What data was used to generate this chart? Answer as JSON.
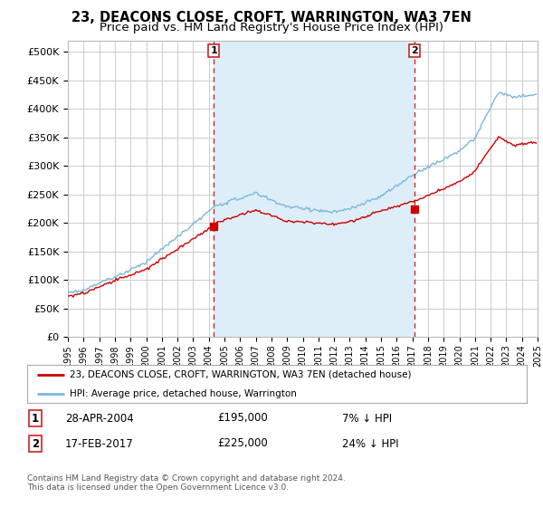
{
  "title": "23, DEACONS CLOSE, CROFT, WARRINGTON, WA3 7EN",
  "subtitle": "Price paid vs. HM Land Registry's House Price Index (HPI)",
  "ylim": [
    0,
    520000
  ],
  "yticks": [
    0,
    50000,
    100000,
    150000,
    200000,
    250000,
    300000,
    350000,
    400000,
    450000,
    500000
  ],
  "ytick_labels": [
    "£0",
    "£50K",
    "£100K",
    "£150K",
    "£200K",
    "£250K",
    "£300K",
    "£350K",
    "£400K",
    "£450K",
    "£500K"
  ],
  "year_start": 1995,
  "year_end": 2025,
  "sale1_year": 2004.32,
  "sale1_price": 195000,
  "sale2_year": 2017.12,
  "sale2_price": 225000,
  "hpi_color": "#7ab8d9",
  "price_color": "#cc0000",
  "vline_color": "#cc0000",
  "shade_color": "#ddeef8",
  "legend_label1": "23, DEACONS CLOSE, CROFT, WARRINGTON, WA3 7EN (detached house)",
  "legend_label2": "HPI: Average price, detached house, Warrington",
  "table_row1": [
    "1",
    "28-APR-2004",
    "£195,000",
    "7% ↓ HPI"
  ],
  "table_row2": [
    "2",
    "17-FEB-2017",
    "£225,000",
    "24% ↓ HPI"
  ],
  "footer": "Contains HM Land Registry data © Crown copyright and database right 2024.\nThis data is licensed under the Open Government Licence v3.0.",
  "bg_color": "#ffffff",
  "grid_color": "#cccccc",
  "title_fontsize": 10.5,
  "subtitle_fontsize": 9.5
}
